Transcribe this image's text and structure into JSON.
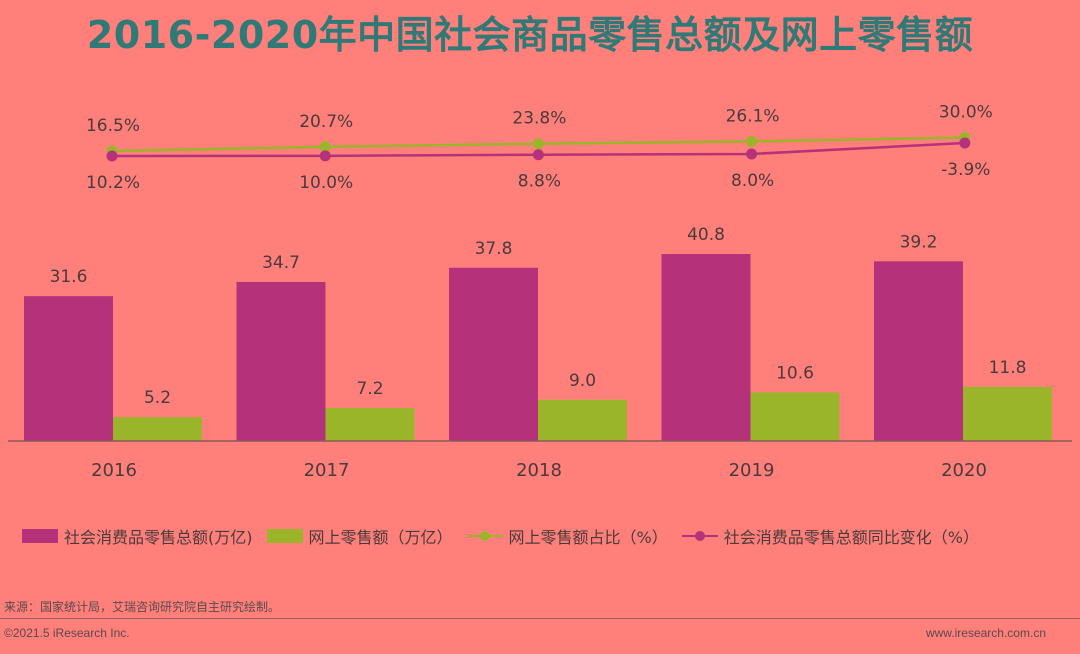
{
  "title": "2016-2020年中国社会商品零售总额及网上零售额",
  "chart_data": {
    "type": "bar",
    "categories": [
      "2016",
      "2017",
      "2018",
      "2019",
      "2020"
    ],
    "series": [
      {
        "name": "社会消费品零售总额(万亿)",
        "type": "bar",
        "color": "#b5317a",
        "values": [
          31.6,
          34.7,
          37.8,
          40.8,
          39.2
        ],
        "labels": [
          "31.6",
          "34.7",
          "37.8",
          "40.8",
          "39.2"
        ]
      },
      {
        "name": "网上零售额（万亿）",
        "type": "bar",
        "color": "#9ab52a",
        "values": [
          5.2,
          7.2,
          9.0,
          10.6,
          11.8
        ],
        "labels": [
          "5.2",
          "7.2",
          "9.0",
          "10.6",
          "11.8"
        ]
      },
      {
        "name": "网上零售额占比（%）",
        "type": "line",
        "color": "#9ab52a",
        "values": [
          16.5,
          20.7,
          23.8,
          26.1,
          30.0
        ],
        "labels": [
          "16.5%",
          "20.7%",
          "23.8%",
          "26.1%",
          "30.0%"
        ]
      },
      {
        "name": "社会消费品零售总额同比变化（%）",
        "type": "line",
        "color": "#b5317a",
        "values": [
          10.2,
          10.0,
          8.8,
          8.0,
          -3.9
        ],
        "labels": [
          "10.2%",
          "10.0%",
          "8.8%",
          "8.0%",
          "-3.9%"
        ]
      }
    ],
    "legend_position": "bottom",
    "grid": false
  },
  "source": "来源：国家统计局，艾瑞咨询研究院自主研究绘制。",
  "copyright": "©2021.5 iResearch Inc.",
  "website": "www.iresearch.com.cn"
}
